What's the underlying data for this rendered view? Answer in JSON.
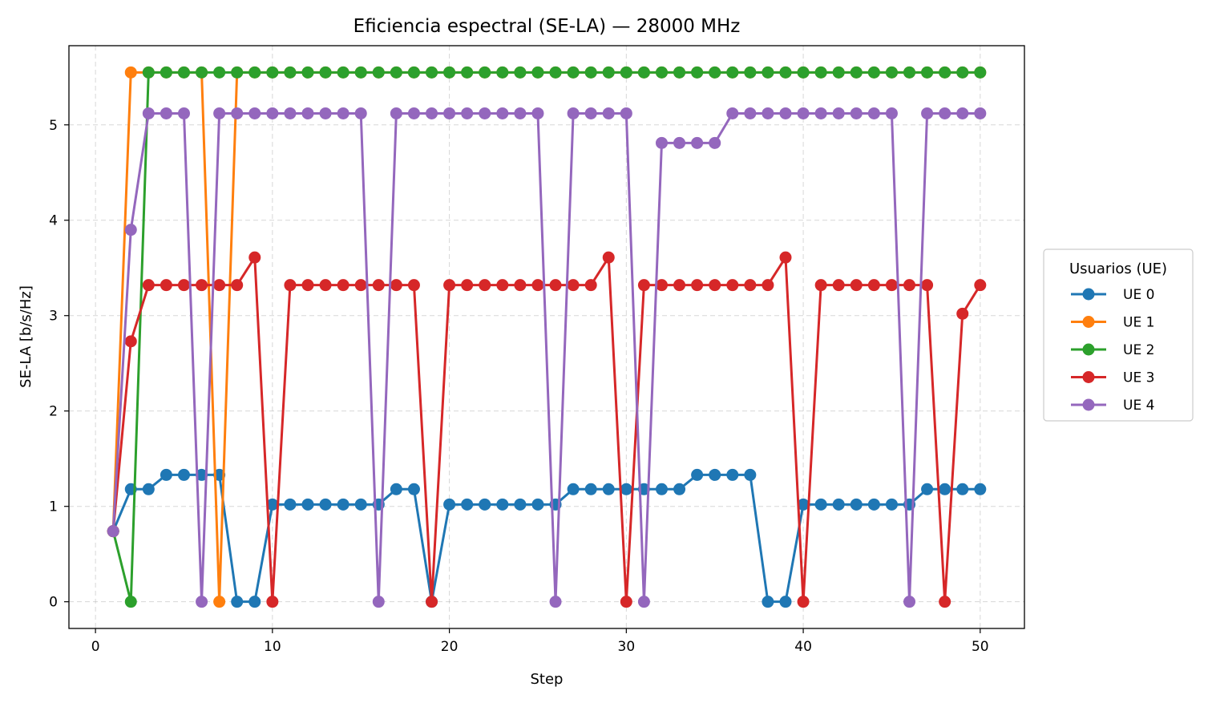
{
  "chart_data": {
    "type": "line",
    "title": "Eficiencia espectral (SE-LA) — 28000 MHz",
    "xlabel": "Step",
    "ylabel": "SE-LA [b/s/Hz]",
    "xlim": [
      -1.5,
      52.5
    ],
    "ylim": [
      -0.28,
      5.83
    ],
    "xticks": [
      0,
      10,
      20,
      30,
      40,
      50
    ],
    "yticks": [
      0,
      1,
      2,
      3,
      4,
      5
    ],
    "grid": true,
    "legend": {
      "title": "Usuarios (UE)",
      "placement": "center-right-outside"
    },
    "x": [
      1,
      2,
      3,
      4,
      5,
      6,
      7,
      8,
      9,
      10,
      11,
      12,
      13,
      14,
      15,
      16,
      17,
      18,
      19,
      20,
      21,
      22,
      23,
      24,
      25,
      26,
      27,
      28,
      29,
      30,
      31,
      32,
      33,
      34,
      35,
      36,
      37,
      38,
      39,
      40,
      41,
      42,
      43,
      44,
      45,
      46,
      47,
      48,
      49,
      50
    ],
    "series": [
      {
        "name": "UE 0",
        "color": "#1f77b4",
        "values": [
          0.74,
          1.18,
          1.18,
          1.33,
          1.33,
          1.33,
          1.33,
          0,
          0,
          1.02,
          1.02,
          1.02,
          1.02,
          1.02,
          1.02,
          1.02,
          1.18,
          1.18,
          0,
          1.02,
          1.02,
          1.02,
          1.02,
          1.02,
          1.02,
          1.02,
          1.18,
          1.18,
          1.18,
          1.18,
          1.18,
          1.18,
          1.18,
          1.33,
          1.33,
          1.33,
          1.33,
          0,
          0,
          1.02,
          1.02,
          1.02,
          1.02,
          1.02,
          1.02,
          1.02,
          1.18,
          1.18,
          1.18,
          1.18
        ]
      },
      {
        "name": "UE 1",
        "color": "#ff7f0e",
        "values": [
          0.74,
          5.55,
          5.55,
          5.55,
          5.55,
          5.55,
          0,
          5.55,
          5.55,
          5.55,
          5.55,
          5.55,
          5.55,
          5.55,
          5.55,
          5.55,
          5.55,
          5.55,
          5.55,
          5.55,
          5.55,
          5.55,
          5.55,
          5.55,
          5.55,
          5.55,
          5.55,
          5.55,
          5.55,
          5.55,
          5.55,
          5.55,
          5.55,
          5.55,
          5.55,
          5.55,
          5.55,
          5.55,
          5.55,
          5.55,
          5.55,
          5.55,
          5.55,
          5.55,
          5.55,
          5.55,
          5.55,
          5.55,
          5.55,
          5.55
        ]
      },
      {
        "name": "UE 2",
        "color": "#2ca02c",
        "values": [
          0.74,
          0,
          5.55,
          5.55,
          5.55,
          5.55,
          5.55,
          5.55,
          5.55,
          5.55,
          5.55,
          5.55,
          5.55,
          5.55,
          5.55,
          5.55,
          5.55,
          5.55,
          5.55,
          5.55,
          5.55,
          5.55,
          5.55,
          5.55,
          5.55,
          5.55,
          5.55,
          5.55,
          5.55,
          5.55,
          5.55,
          5.55,
          5.55,
          5.55,
          5.55,
          5.55,
          5.55,
          5.55,
          5.55,
          5.55,
          5.55,
          5.55,
          5.55,
          5.55,
          5.55,
          5.55,
          5.55,
          5.55,
          5.55,
          5.55
        ]
      },
      {
        "name": "UE 3",
        "color": "#d62728",
        "values": [
          0.74,
          2.73,
          3.32,
          3.32,
          3.32,
          3.32,
          3.32,
          3.32,
          3.61,
          0,
          3.32,
          3.32,
          3.32,
          3.32,
          3.32,
          3.32,
          3.32,
          3.32,
          0,
          3.32,
          3.32,
          3.32,
          3.32,
          3.32,
          3.32,
          3.32,
          3.32,
          3.32,
          3.61,
          0,
          3.32,
          3.32,
          3.32,
          3.32,
          3.32,
          3.32,
          3.32,
          3.32,
          3.61,
          0,
          3.32,
          3.32,
          3.32,
          3.32,
          3.32,
          3.32,
          3.32,
          0,
          3.02,
          3.32
        ]
      },
      {
        "name": "UE 4",
        "color": "#9467bd",
        "values": [
          0.74,
          3.9,
          5.12,
          5.12,
          5.12,
          0,
          5.12,
          5.12,
          5.12,
          5.12,
          5.12,
          5.12,
          5.12,
          5.12,
          5.12,
          0,
          5.12,
          5.12,
          5.12,
          5.12,
          5.12,
          5.12,
          5.12,
          5.12,
          5.12,
          0,
          5.12,
          5.12,
          5.12,
          5.12,
          0,
          4.81,
          4.81,
          4.81,
          4.81,
          5.12,
          5.12,
          5.12,
          5.12,
          5.12,
          5.12,
          5.12,
          5.12,
          5.12,
          5.12,
          0,
          5.12,
          5.12,
          5.12,
          5.12
        ]
      }
    ]
  }
}
